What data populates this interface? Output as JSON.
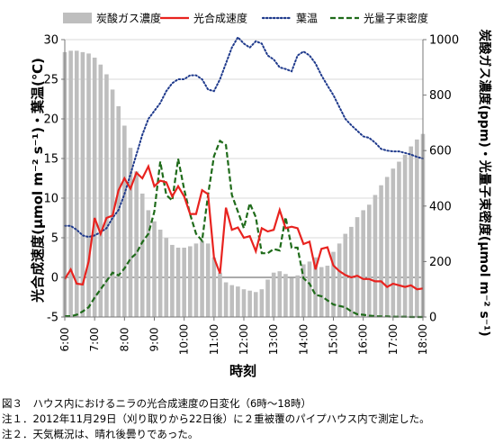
{
  "chart_data": {
    "type": "bar+line",
    "xlabel": "時刻",
    "ylabel_left": "光合成速度(μmol m⁻² s⁻¹)・葉温(℃)",
    "ylabel_right": "炭酸ガス濃度(ppm)・光量子束密度(μmol m⁻² s⁻¹)",
    "x_ticks": [
      "6:00",
      "7:00",
      "8:00",
      "9:00",
      "10:00",
      "11:00",
      "12:00",
      "13:00",
      "14:00",
      "15:00",
      "16:00",
      "17:00",
      "18:00"
    ],
    "x_range_hours": [
      6,
      18
    ],
    "ylim_left": [
      -5,
      30
    ],
    "ylim_right": [
      0,
      1000
    ],
    "y_ticks_left": [
      -5,
      0,
      5,
      10,
      15,
      20,
      25,
      30
    ],
    "y_ticks_right": [
      0,
      200,
      400,
      600,
      800,
      1000
    ],
    "legend_position": "top",
    "colors": {
      "co2": "#bebebe",
      "photosynthesis": "#e8231f",
      "leaf_temp": "#1f3a8c",
      "ppfd": "#1f6b1a"
    },
    "series": [
      {
        "name": "炭酸ガス濃度",
        "axis": "right",
        "style": "bar",
        "x": [
          6.0,
          6.2,
          6.4,
          6.6,
          6.8,
          7.0,
          7.2,
          7.4,
          7.6,
          7.8,
          8.0,
          8.2,
          8.4,
          8.6,
          8.8,
          9.0,
          9.2,
          9.4,
          9.6,
          9.8,
          10.0,
          10.2,
          10.4,
          10.6,
          10.8,
          11.0,
          11.2,
          11.4,
          11.6,
          11.8,
          12.0,
          12.2,
          12.4,
          12.6,
          12.8,
          13.0,
          13.2,
          13.4,
          13.6,
          13.8,
          14.0,
          14.2,
          14.4,
          14.6,
          14.8,
          15.0,
          15.2,
          15.4,
          15.6,
          15.8,
          16.0,
          16.2,
          16.4,
          16.6,
          16.8,
          17.0,
          17.2,
          17.4,
          17.6,
          17.8,
          18.0
        ],
        "values": [
          955,
          960,
          960,
          955,
          950,
          935,
          910,
          875,
          820,
          760,
          690,
          610,
          525,
          445,
          385,
          345,
          315,
          285,
          260,
          250,
          250,
          255,
          265,
          275,
          265,
          215,
          160,
          125,
          115,
          110,
          100,
          95,
          90,
          100,
          135,
          160,
          165,
          155,
          140,
          150,
          190,
          200,
          215,
          180,
          185,
          235,
          265,
          300,
          325,
          360,
          385,
          405,
          440,
          475,
          505,
          535,
          560,
          585,
          615,
          640,
          660
        ]
      },
      {
        "name": "光合成速度",
        "axis": "left",
        "style": "line",
        "x": [
          6.0,
          6.2,
          6.4,
          6.6,
          6.8,
          7.0,
          7.2,
          7.4,
          7.6,
          7.8,
          8.0,
          8.2,
          8.4,
          8.6,
          8.8,
          9.0,
          9.2,
          9.4,
          9.6,
          9.8,
          10.0,
          10.2,
          10.4,
          10.6,
          10.8,
          11.0,
          11.2,
          11.4,
          11.6,
          11.8,
          12.0,
          12.2,
          12.4,
          12.6,
          12.8,
          13.0,
          13.2,
          13.4,
          13.6,
          13.8,
          14.0,
          14.2,
          14.4,
          14.6,
          14.8,
          15.0,
          15.2,
          15.4,
          15.6,
          15.8,
          16.0,
          16.2,
          16.4,
          16.6,
          16.8,
          17.0,
          17.2,
          17.4,
          17.6,
          17.8,
          18.0
        ],
        "values": [
          -0.2,
          1.0,
          -0.8,
          -0.9,
          2.0,
          7.5,
          5.5,
          7.5,
          7.8,
          11.0,
          12.5,
          11.2,
          13.2,
          12.5,
          14.0,
          11.5,
          12.2,
          12.0,
          10.2,
          11.5,
          10.2,
          8.0,
          8.0,
          11.0,
          10.5,
          2.5,
          0.5,
          8.8,
          6.0,
          6.3,
          5.0,
          5.2,
          3.3,
          6.2,
          5.8,
          6.0,
          8.5,
          6.2,
          6.4,
          6.2,
          4.2,
          4.5,
          1.0,
          3.6,
          3.8,
          1.5,
          0.8,
          0.3,
          0.0,
          0.2,
          -0.2,
          -0.2,
          -0.5,
          -0.5,
          -1.2,
          -0.8,
          -1.0,
          -1.2,
          -1.0,
          -1.5,
          -1.4
        ]
      },
      {
        "name": "葉温",
        "axis": "left",
        "style": "dotted",
        "x": [
          6.0,
          6.2,
          6.4,
          6.6,
          6.8,
          7.0,
          7.2,
          7.4,
          7.6,
          7.8,
          8.0,
          8.2,
          8.4,
          8.6,
          8.8,
          9.0,
          9.2,
          9.4,
          9.6,
          9.8,
          10.0,
          10.2,
          10.4,
          10.6,
          10.8,
          11.0,
          11.2,
          11.4,
          11.6,
          11.8,
          12.0,
          12.2,
          12.4,
          12.6,
          12.8,
          13.0,
          13.2,
          13.4,
          13.6,
          13.8,
          14.0,
          14.2,
          14.4,
          14.6,
          14.8,
          15.0,
          15.2,
          15.4,
          15.6,
          15.8,
          16.0,
          16.2,
          16.4,
          16.6,
          16.8,
          17.0,
          17.2,
          17.4,
          17.6,
          17.8,
          18.0
        ],
        "values": [
          6.5,
          6.5,
          6.0,
          5.3,
          5.1,
          5.3,
          5.7,
          6.2,
          7.5,
          8.5,
          10.5,
          13.0,
          15.5,
          18.0,
          20.0,
          21.0,
          22.0,
          23.5,
          24.5,
          25.0,
          25.0,
          25.5,
          25.5,
          25.0,
          23.7,
          23.5,
          25.0,
          27.0,
          29.0,
          30.3,
          29.5,
          29.0,
          29.8,
          29.5,
          28.0,
          27.5,
          26.5,
          26.3,
          26.0,
          28.0,
          28.5,
          28.0,
          27.0,
          25.5,
          24.2,
          23.0,
          21.5,
          20.0,
          19.2,
          18.5,
          17.8,
          17.6,
          17.0,
          16.2,
          16.0,
          15.9,
          15.9,
          15.7,
          15.5,
          15.2,
          15.0
        ]
      },
      {
        "name": "光量子束密度",
        "axis": "right",
        "style": "dashed",
        "x": [
          6.0,
          6.2,
          6.4,
          6.6,
          6.8,
          7.0,
          7.2,
          7.4,
          7.6,
          7.8,
          8.0,
          8.2,
          8.4,
          8.6,
          8.8,
          9.0,
          9.2,
          9.4,
          9.6,
          9.8,
          10.0,
          10.2,
          10.4,
          10.6,
          10.8,
          11.0,
          11.2,
          11.4,
          11.6,
          11.8,
          12.0,
          12.2,
          12.4,
          12.6,
          12.8,
          13.0,
          13.2,
          13.4,
          13.6,
          13.8,
          14.0,
          14.2,
          14.4,
          14.6,
          14.8,
          15.0,
          15.2,
          15.4,
          15.6,
          15.8,
          16.0,
          16.2,
          16.4,
          16.6,
          16.8,
          17.0,
          17.2,
          17.4,
          17.6,
          17.8,
          18.0
        ],
        "values": [
          3,
          3,
          8,
          20,
          35,
          70,
          100,
          130,
          160,
          150,
          175,
          210,
          230,
          270,
          300,
          380,
          560,
          440,
          420,
          570,
          460,
          370,
          300,
          275,
          440,
          580,
          635,
          620,
          440,
          380,
          320,
          410,
          360,
          230,
          230,
          245,
          240,
          360,
          250,
          250,
          140,
          120,
          80,
          75,
          60,
          45,
          40,
          35,
          20,
          10,
          8,
          5,
          3,
          2,
          2,
          1,
          1,
          1,
          0,
          0,
          0
        ]
      }
    ]
  },
  "caption": {
    "figure": "図３　ハウス内におけるニラの光合成速度の日変化（6時～18時）",
    "note1": "注１．2012年11月29日（刈り取りから22日後）に２重被覆のパイプハウス内で測定した。",
    "note2": "注２．天気概況は、晴れ後曇りであった。"
  }
}
